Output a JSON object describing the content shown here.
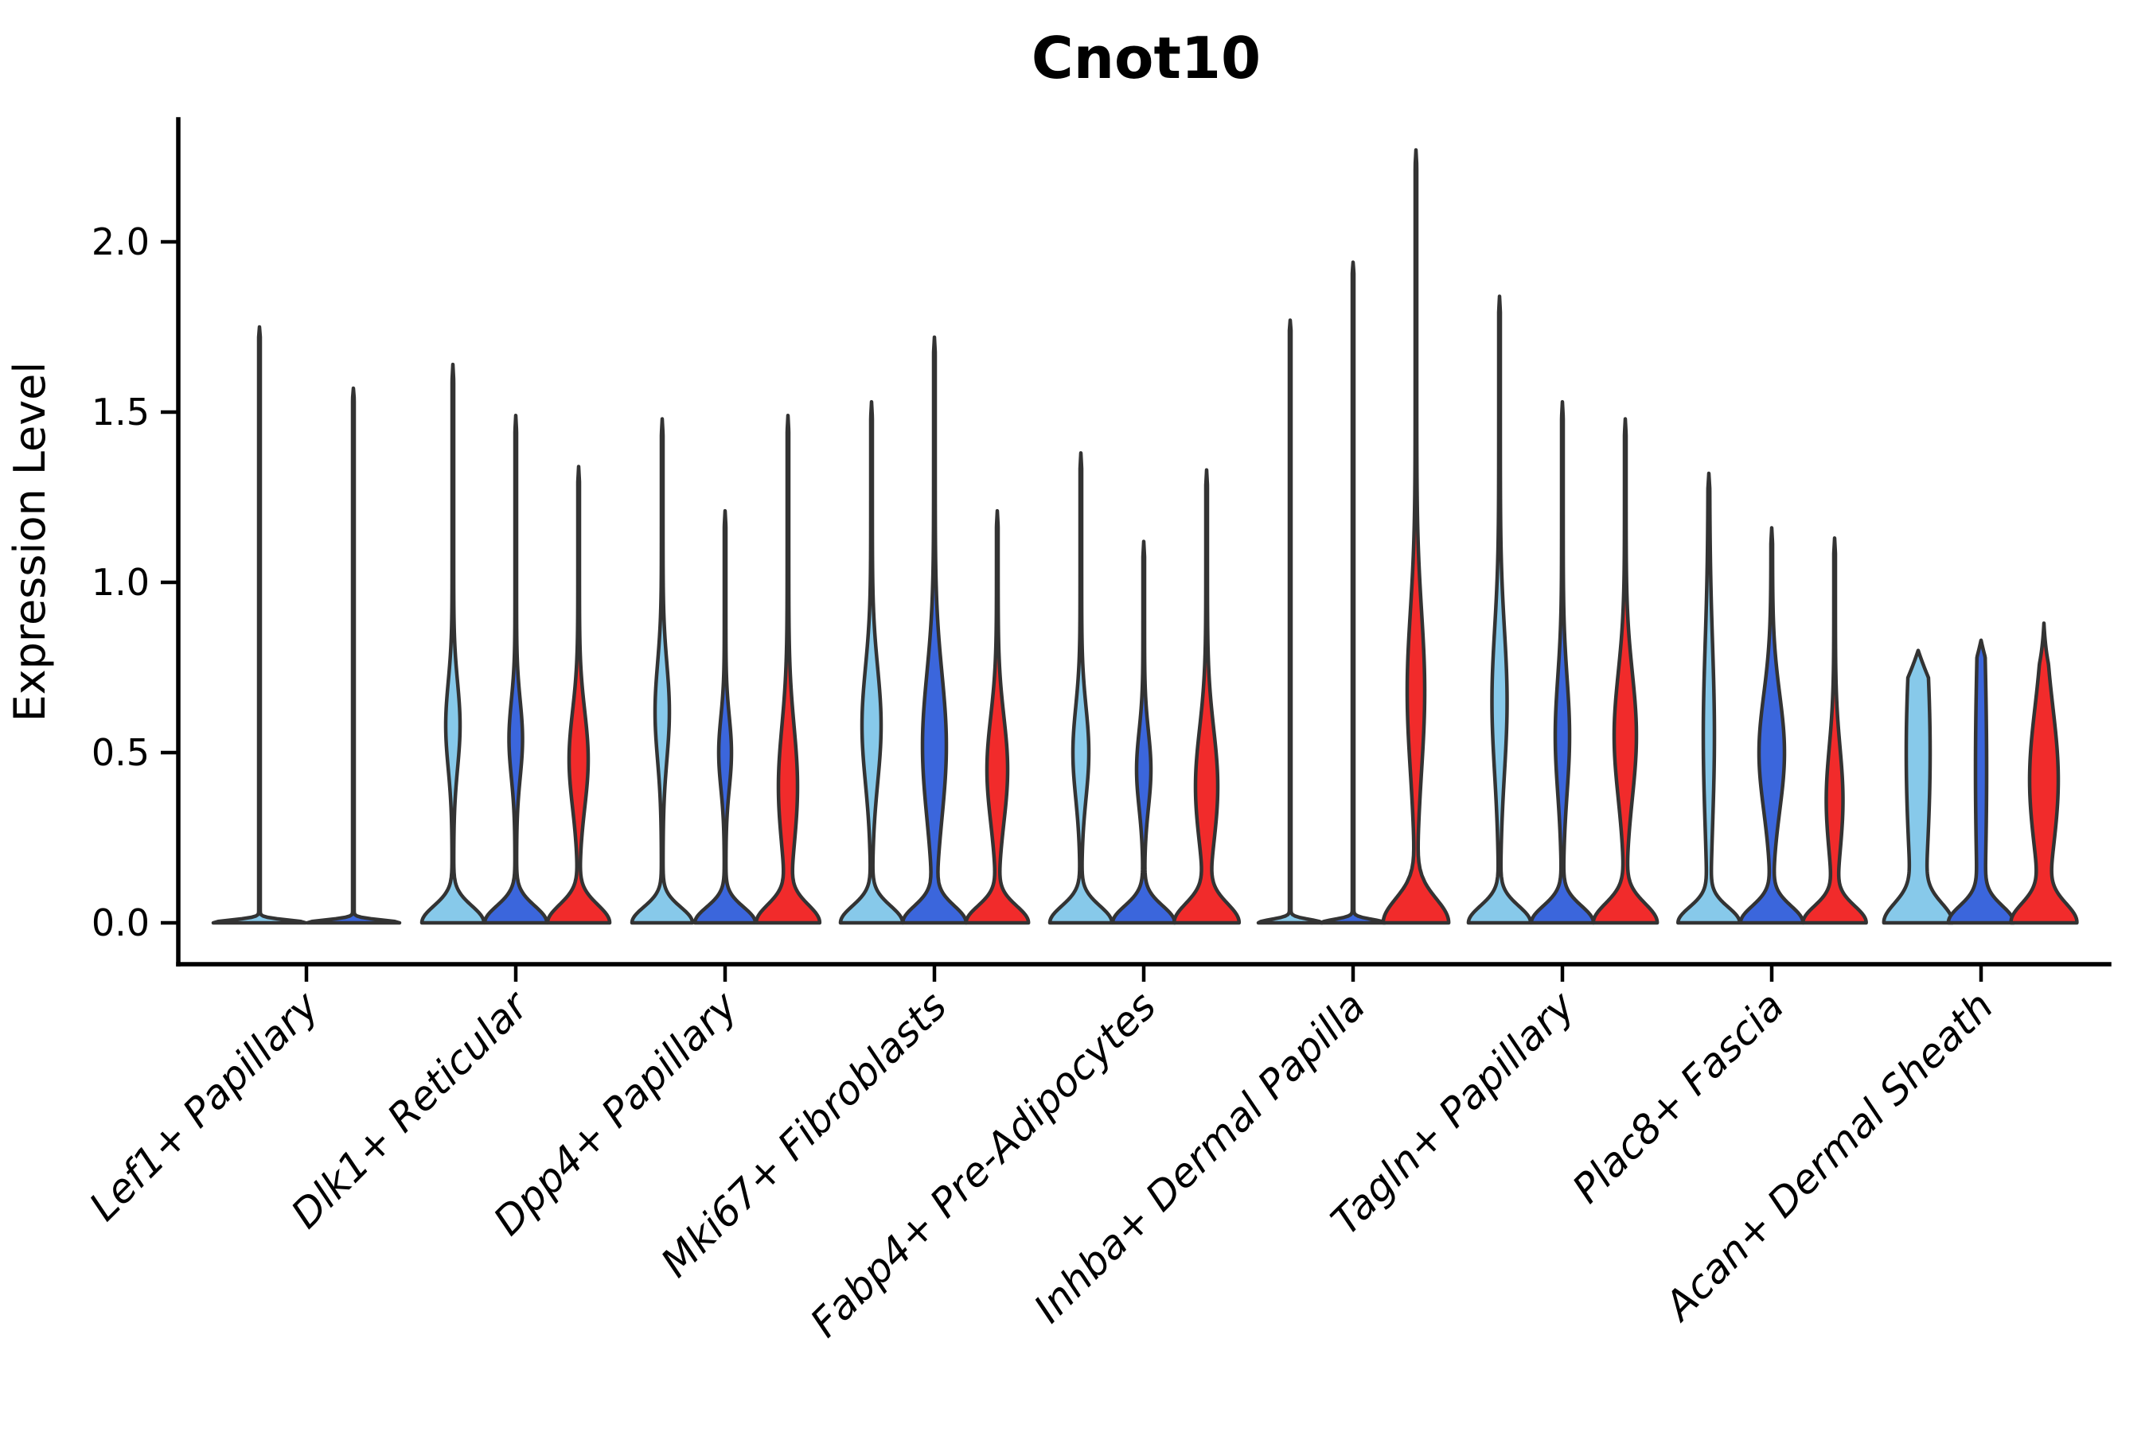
{
  "chart_data": {
    "type": "violin",
    "title": "Cnot10",
    "ylabel": "Expression Level",
    "xlabel": "",
    "ytick_labels": [
      "0.0",
      "0.5",
      "1.0",
      "1.5",
      "2.0"
    ],
    "ylim": [
      0,
      2.35
    ],
    "grid": "off",
    "legend": "none",
    "xtick_rotation_deg": 45,
    "outline_color": "#333333",
    "series_colors": {
      "light_blue": "#87C9EA",
      "dark_blue": "#3B66DC",
      "red": "#F12B2B"
    },
    "categories": [
      "Lef1+ Papillary",
      "Dlk1+ Reticular",
      "Dpp4+ Papillary",
      "Mki67+ Fibroblasts",
      "Fabp4+ Pre-Adipocytes",
      "Inhba+ Dermal Papilla",
      "Tagln+ Papillary",
      "Plac8+ Fascia",
      "Acan+ Dermal Sheath"
    ],
    "violins": [
      {
        "category": "Lef1+ Papillary",
        "cells": [
          {
            "series": "light_blue",
            "max": 1.75,
            "mode": 0.0,
            "dx": -59,
            "mid": 0,
            "base": 57,
            "baseS": 0.012,
            "tip": 0.03
          },
          {
            "series": "dark_blue",
            "max": 1.57,
            "mode": 0.0,
            "dx": 59,
            "mid": 0,
            "base": 57,
            "baseS": 0.012,
            "tip": 0.03
          }
        ]
      },
      {
        "category": "Dlk1+ Reticular",
        "cells": [
          {
            "series": "light_blue",
            "max": 1.64,
            "mode": 0.0,
            "mu": 0.58,
            "mid": 8,
            "midS": 0.18,
            "base": 38,
            "baseS": 0.07
          },
          {
            "series": "dark_blue",
            "max": 1.49,
            "mode": 0.0,
            "mu": 0.54,
            "mid": 7.5,
            "midS": 0.16,
            "base": 38,
            "baseS": 0.07
          },
          {
            "series": "red",
            "max": 1.34,
            "mode": 0.0,
            "mu": 0.48,
            "mid": 11,
            "midS": 0.2,
            "base": 38,
            "baseS": 0.075
          }
        ]
      },
      {
        "category": "Dpp4+ Papillary",
        "cells": [
          {
            "series": "light_blue",
            "max": 1.48,
            "mode": 0.0,
            "mu": 0.62,
            "mid": 8,
            "midS": 0.2,
            "base": 37,
            "baseS": 0.065
          },
          {
            "series": "dark_blue",
            "max": 1.21,
            "mode": 0.0,
            "mu": 0.5,
            "mid": 7,
            "midS": 0.15,
            "base": 37,
            "baseS": 0.065
          },
          {
            "series": "red",
            "max": 1.49,
            "mode": 0.0,
            "mu": 0.4,
            "mid": 11,
            "midS": 0.25,
            "base": 38,
            "baseS": 0.075
          }
        ]
      },
      {
        "category": "Mki67+ Fibroblasts",
        "cells": [
          {
            "series": "light_blue",
            "max": 1.53,
            "mode": 0.0,
            "mu": 0.58,
            "mid": 11,
            "midS": 0.24,
            "base": 38,
            "baseS": 0.07
          },
          {
            "series": "dark_blue",
            "max": 1.72,
            "mode": 0.0,
            "mu": 0.52,
            "mid": 14,
            "midS": 0.3,
            "base": 38,
            "baseS": 0.07
          },
          {
            "series": "red",
            "max": 1.21,
            "mode": 0.0,
            "mu": 0.45,
            "mid": 12,
            "midS": 0.22,
            "base": 38,
            "baseS": 0.07
          }
        ]
      },
      {
        "category": "Fabp4+ Pre-Adipocytes",
        "cells": [
          {
            "series": "light_blue",
            "max": 1.38,
            "mode": 0.0,
            "mu": 0.5,
            "mid": 9,
            "midS": 0.19,
            "base": 38,
            "baseS": 0.07
          },
          {
            "series": "dark_blue",
            "max": 1.12,
            "mode": 0.0,
            "mu": 0.45,
            "mid": 8,
            "midS": 0.16,
            "base": 38,
            "baseS": 0.07
          },
          {
            "series": "red",
            "max": 1.33,
            "mode": 0.0,
            "mu": 0.4,
            "mid": 13,
            "midS": 0.24,
            "base": 39,
            "baseS": 0.08
          }
        ]
      },
      {
        "category": "Inhba+ Dermal Papilla",
        "cells": [
          {
            "series": "light_blue",
            "max": 1.77,
            "mode": 0.0,
            "mid": 0,
            "base": 39,
            "baseS": 0.014,
            "tip": 0.03
          },
          {
            "series": "dark_blue",
            "max": 1.94,
            "mode": 0.0,
            "mid": 0,
            "base": 39,
            "baseS": 0.014,
            "tip": 0.03
          },
          {
            "series": "red",
            "max": 2.27,
            "mode": 0.0,
            "mu": 0.68,
            "mid": 10,
            "midS": 0.33,
            "base": 40,
            "baseS": 0.1
          }
        ]
      },
      {
        "category": "Tagln+ Papillary",
        "cells": [
          {
            "series": "light_blue",
            "max": 1.84,
            "mode": 0.0,
            "mu": 0.65,
            "mid": 8.5,
            "midS": 0.3,
            "base": 38,
            "baseS": 0.07
          },
          {
            "series": "dark_blue",
            "max": 1.53,
            "mode": 0.0,
            "mu": 0.55,
            "mid": 8,
            "midS": 0.24,
            "base": 38,
            "baseS": 0.07
          },
          {
            "series": "red",
            "max": 1.48,
            "mode": 0.0,
            "mu": 0.55,
            "mid": 13,
            "midS": 0.26,
            "base": 39,
            "baseS": 0.08
          }
        ]
      },
      {
        "category": "Plac8+ Fascia",
        "cells": [
          {
            "series": "light_blue",
            "max": 1.32,
            "mode": 0.0,
            "mu": 0.55,
            "mid": 6,
            "midS": 0.38,
            "base": 37,
            "baseS": 0.065
          },
          {
            "series": "dark_blue",
            "max": 1.16,
            "mode": 0.0,
            "mu": 0.5,
            "mid": 15,
            "midS": 0.24,
            "base": 38,
            "baseS": 0.07
          },
          {
            "series": "red",
            "max": 1.13,
            "mode": 0.0,
            "mu": 0.36,
            "mid": 9.5,
            "midS": 0.22,
            "base": 38,
            "baseS": 0.07
          }
        ]
      },
      {
        "category": "Acan+ Dermal Sheath",
        "cells": [
          {
            "series": "light_blue",
            "max": 0.8,
            "mode": 0.5,
            "mu": 0.5,
            "mid": 14,
            "midS": 0.55,
            "base": 36,
            "baseS": 0.08,
            "tip": 0.08
          },
          {
            "series": "dark_blue",
            "max": 0.83,
            "mode": 0.45,
            "mu": 0.45,
            "mid": 6,
            "midS": 0.55,
            "base": 37,
            "baseS": 0.07,
            "tip": 0.05
          },
          {
            "series": "red",
            "max": 0.88,
            "mode": 0.42,
            "mu": 0.42,
            "mid": 17,
            "midS": 0.3,
            "base": 38,
            "baseS": 0.08,
            "tip": 0.12
          }
        ]
      }
    ]
  }
}
